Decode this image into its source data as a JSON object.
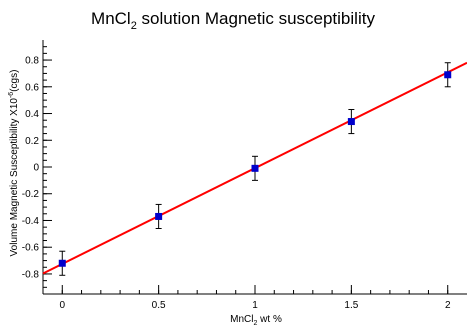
{
  "chart_data": {
    "type": "scatter",
    "title": "MnCl",
    "title_sub": "2",
    "title_rest": " solution Magnetic susceptibility",
    "xlabel": "MnCl",
    "xlabel_sub": "2",
    "xlabel_rest": " wt %",
    "ylabel": "Volume Magnetic Susceptibility X10",
    "ylabel_sup": "-6",
    "ylabel_rest": "(cgs)",
    "xlim": [
      -0.1,
      2.1
    ],
    "ylim": [
      -0.95,
      0.95
    ],
    "x_ticks": [
      "0",
      "0.5",
      "1",
      "1.5",
      "2"
    ],
    "x_tick_values": [
      0,
      0.5,
      1,
      1.5,
      2
    ],
    "y_ticks": [
      "0.8",
      "0.6",
      "0.4",
      "0.2",
      "0",
      "-0.2",
      "-0.4",
      "-0.6",
      "-0.8"
    ],
    "y_tick_values": [
      0.8,
      0.6,
      0.4,
      0.2,
      0,
      -0.2,
      -0.4,
      -0.6,
      -0.8
    ],
    "series": [
      {
        "x": [
          0,
          0.5,
          1,
          1.5,
          2
        ],
        "y": [
          -0.72,
          -0.37,
          -0.01,
          0.34,
          0.69
        ],
        "yerr": [
          0.09,
          0.09,
          0.09,
          0.09,
          0.09
        ],
        "marker_color": "#0000cc"
      }
    ],
    "fit_line": {
      "slope": 0.7166,
      "intercept": -0.725,
      "color": "#ff0000"
    },
    "grid": false
  }
}
